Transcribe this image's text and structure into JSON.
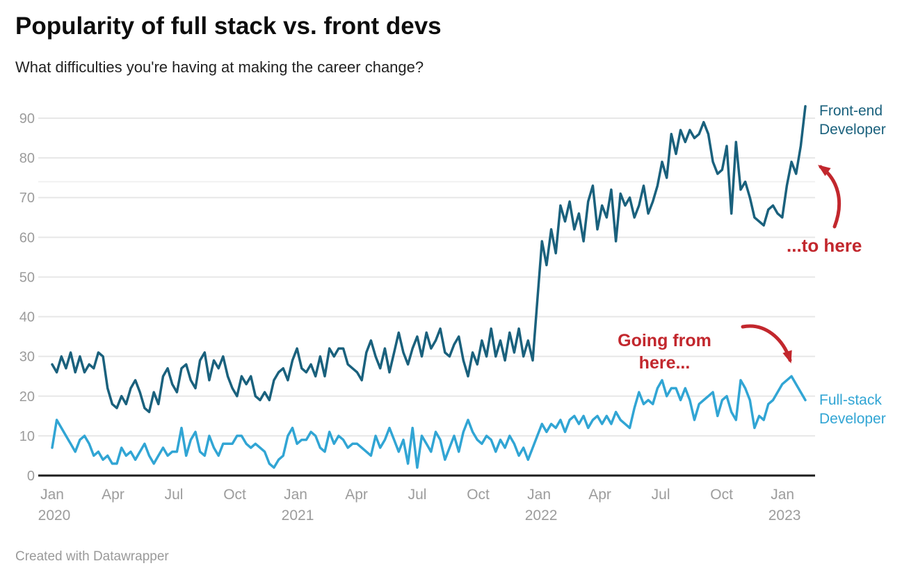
{
  "header": {
    "title": "Popularity of full stack vs. front devs",
    "subtitle": "What difficulties you're having at making the career change?"
  },
  "footer": {
    "credit": "Created with Datawrapper"
  },
  "colors": {
    "front_end_line": "#1a617d",
    "full_stack_line": "#31a5d4",
    "annotation_red": "#c2272d",
    "gridline": "#e7e7e7",
    "faint_gridline": "#f0f0f0",
    "axis_label": "#9c9c9c",
    "baseline": "#1c1c1c"
  },
  "legend": {
    "front_end": {
      "line1": "Front-end",
      "line2": "Developer"
    },
    "full_stack": {
      "line1": "Full-stack",
      "line2": "Developer"
    }
  },
  "annotations": {
    "going_from_line1": "Going from",
    "going_from_line2": "here...",
    "to_here": "...to here"
  },
  "chart_data": {
    "type": "line",
    "interval": "weekly",
    "x_start": "Jan 2020",
    "x_end": "Feb 2023",
    "ylim": [
      0,
      95
    ],
    "y_ticks": [
      0,
      10,
      20,
      30,
      40,
      50,
      60,
      70,
      80,
      90
    ],
    "faint_extra_gridline_value": 74,
    "grid": "horizontal only",
    "legend_position": "right edge, colored direct labels",
    "x_tick_labels": [
      {
        "month": "Jan",
        "year": "2020",
        "pos": 0
      },
      {
        "month": "Apr",
        "pos": 3
      },
      {
        "month": "Jul",
        "pos": 6
      },
      {
        "month": "Oct",
        "pos": 9
      },
      {
        "month": "Jan",
        "year": "2021",
        "pos": 12
      },
      {
        "month": "Apr",
        "pos": 15
      },
      {
        "month": "Jul",
        "pos": 18
      },
      {
        "month": "Oct",
        "pos": 21
      },
      {
        "month": "Jan",
        "year": "2022",
        "pos": 24
      },
      {
        "month": "Apr",
        "pos": 27
      },
      {
        "month": "Jul",
        "pos": 30
      },
      {
        "month": "Oct",
        "pos": 33
      },
      {
        "month": "Jan",
        "year": "2023",
        "pos": 36
      }
    ],
    "series": [
      {
        "name": "Front-end Developer",
        "color": "#1a617d",
        "values": [
          28,
          26,
          30,
          27,
          31,
          26,
          30,
          26,
          28,
          27,
          31,
          30,
          22,
          18,
          17,
          20,
          18,
          22,
          24,
          21,
          17,
          16,
          21,
          18,
          25,
          27,
          23,
          21,
          27,
          28,
          24,
          22,
          29,
          31,
          24,
          29,
          27,
          30,
          25,
          22,
          20,
          25,
          23,
          25,
          20,
          19,
          21,
          19,
          24,
          26,
          27,
          24,
          29,
          32,
          27,
          26,
          28,
          25,
          30,
          25,
          32,
          30,
          32,
          32,
          28,
          27,
          26,
          24,
          31,
          34,
          30,
          27,
          32,
          26,
          31,
          36,
          31,
          28,
          32,
          35,
          30,
          36,
          32,
          34,
          37,
          31,
          30,
          33,
          35,
          29,
          25,
          31,
          28,
          34,
          30,
          37,
          30,
          34,
          29,
          36,
          31,
          37,
          30,
          34,
          29,
          44,
          59,
          53,
          62,
          56,
          68,
          64,
          69,
          62,
          66,
          59,
          69,
          73,
          62,
          68,
          65,
          72,
          59,
          71,
          68,
          70,
          65,
          68,
          73,
          66,
          69,
          73,
          79,
          75,
          86,
          81,
          87,
          84,
          87,
          85,
          86,
          89,
          86,
          79,
          76,
          77,
          83,
          66,
          84,
          72,
          74,
          70,
          65,
          64,
          63,
          67,
          68,
          66,
          65,
          73,
          79,
          76,
          83,
          93
        ]
      },
      {
        "name": "Full-stack Developer",
        "color": "#31a5d4",
        "values": [
          7,
          14,
          12,
          10,
          8,
          6,
          9,
          10,
          8,
          5,
          6,
          4,
          5,
          3,
          3,
          7,
          5,
          6,
          4,
          6,
          8,
          5,
          3,
          5,
          7,
          5,
          6,
          6,
          12,
          5,
          9,
          11,
          6,
          5,
          10,
          7,
          5,
          8,
          8,
          8,
          10,
          10,
          8,
          7,
          8,
          7,
          6,
          3,
          2,
          4,
          5,
          10,
          12,
          8,
          9,
          9,
          11,
          10,
          7,
          6,
          11,
          8,
          10,
          9,
          7,
          8,
          8,
          7,
          6,
          5,
          10,
          7,
          9,
          12,
          9,
          6,
          9,
          3,
          12,
          2,
          10,
          8,
          6,
          11,
          9,
          4,
          7,
          10,
          6,
          11,
          14,
          11,
          9,
          8,
          10,
          9,
          6,
          9,
          7,
          10,
          8,
          5,
          7,
          4,
          7,
          10,
          13,
          11,
          13,
          12,
          14,
          11,
          14,
          15,
          13,
          15,
          12,
          14,
          15,
          13,
          15,
          13,
          16,
          14,
          13,
          12,
          17,
          21,
          18,
          19,
          18,
          22,
          24,
          20,
          22,
          22,
          19,
          22,
          19,
          14,
          18,
          19,
          20,
          21,
          15,
          19,
          20,
          16,
          14,
          24,
          22,
          19,
          12,
          15,
          14,
          18,
          19,
          21,
          23,
          24,
          25,
          23,
          21,
          19
        ]
      }
    ]
  }
}
